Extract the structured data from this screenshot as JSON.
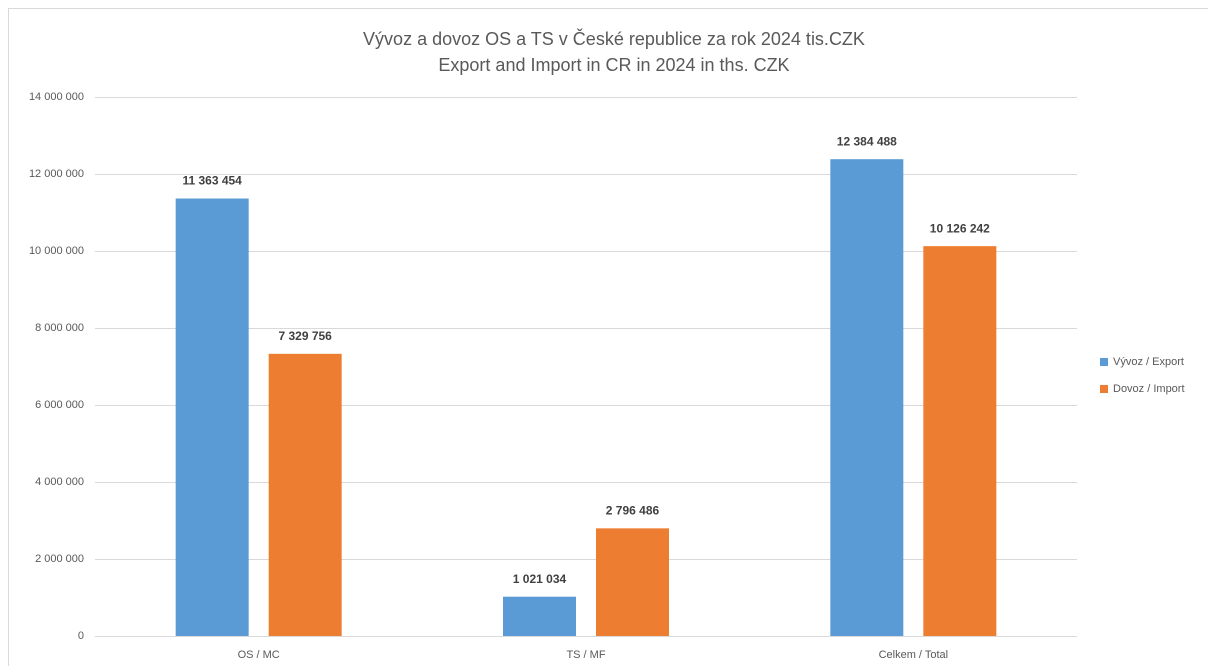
{
  "chart_data": {
    "type": "bar",
    "title": "Vývoz a dovoz OS a TS v České republice za rok 2024 tis.CZK",
    "subtitle": "Export and Import in CR in  2024 in ths. CZK",
    "categories": [
      "OS / MC",
      "TS / MF",
      "Celkem / Total"
    ],
    "series": [
      {
        "name": "Vývoz / Export",
        "color": "#5b9bd5",
        "values": [
          11363454,
          1021034,
          12384488
        ],
        "value_labels": [
          "11 363 454",
          "1 021 034",
          "12 384 488"
        ]
      },
      {
        "name": "Dovoz / Import",
        "color": "#ed7d31",
        "values": [
          7329756,
          2796486,
          10126242
        ],
        "value_labels": [
          "7 329 756",
          "2 796 486",
          "10 126 242"
        ]
      }
    ],
    "ylim": [
      0,
      14000000
    ],
    "yticks": [
      {
        "value": 0,
        "label": "0"
      },
      {
        "value": 2000000,
        "label": "2 000 000"
      },
      {
        "value": 4000000,
        "label": "4 000 000"
      },
      {
        "value": 6000000,
        "label": "6 000 000"
      },
      {
        "value": 8000000,
        "label": "8 000 000"
      },
      {
        "value": 10000000,
        "label": "10 000 000"
      },
      {
        "value": 12000000,
        "label": "12 000 000"
      },
      {
        "value": 14000000,
        "label": "14 000 000"
      }
    ],
    "grid": true,
    "legend": "right"
  }
}
